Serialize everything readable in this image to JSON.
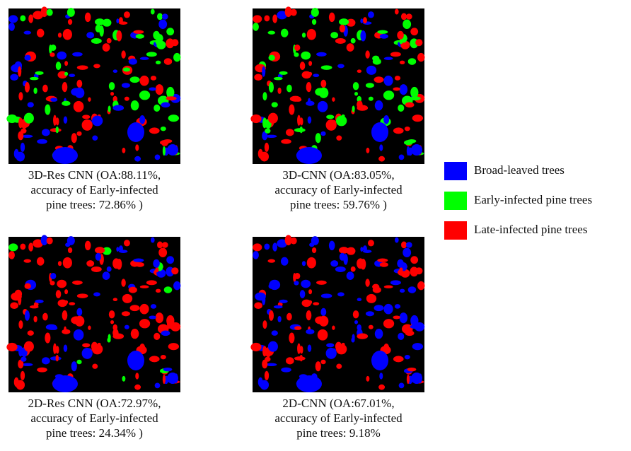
{
  "panels": [
    {
      "caption": [
        "3D-Res CNN (OA:88.11%,",
        "accuracy of Early-infected",
        "pine trees: 72.86% )"
      ]
    },
    {
      "caption": [
        "3D-CNN (OA:83.05%,",
        "accuracy of Early-infected",
        "pine trees: 59.76% )"
      ]
    },
    {
      "caption": [
        "2D-Res CNN (OA:72.97%,",
        "accuracy of Early-infected",
        "pine trees: 24.34% )"
      ]
    },
    {
      "caption": [
        "2D-CNN (OA:67.01%,",
        "accuracy of Early-infected",
        "pine trees: 9.18%"
      ]
    }
  ],
  "legend": [
    {
      "label": "Broad-leaved trees",
      "color": "#0000ff"
    },
    {
      "label": "Early-infected pine trees",
      "color": "#00ff00"
    },
    {
      "label": "Late-infected pine trees",
      "color": "#ff0000"
    }
  ]
}
